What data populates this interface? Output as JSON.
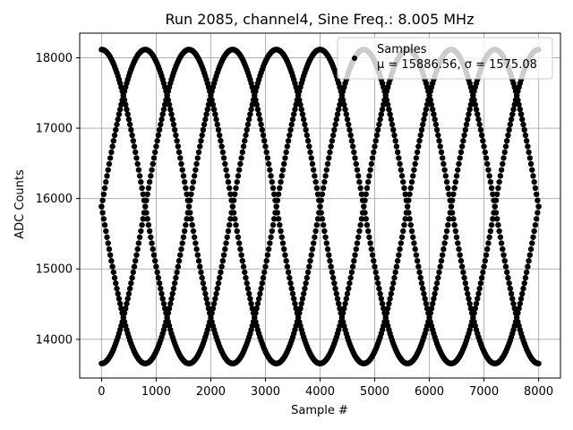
{
  "chart_data": {
    "type": "scatter",
    "title": "Run 2085, channel4, Sine Freq.: 8.005 MHz",
    "xlabel": "Sample #",
    "ylabel": "ADC Counts",
    "xlim": [
      -400,
      8400
    ],
    "ylim": [
      13450,
      18350
    ],
    "xticks": [
      0,
      1000,
      2000,
      3000,
      4000,
      5000,
      6000,
      7000,
      8000
    ],
    "yticks": [
      14000,
      15000,
      16000,
      17000,
      18000
    ],
    "grid": true,
    "legend": {
      "placement": "top-right",
      "label": "Samples",
      "stats": "μ = 15886.56, σ = 1575.08"
    },
    "series": [
      {
        "name": "Samples",
        "color": "#000000",
        "highlight_color": "#c8c8c8",
        "traces_description": "Sine sampled at 8.005 MHz aliased into interleaved sinusoids",
        "mean": 15886.56,
        "amplitude": 2230,
        "period_samples": 3200,
        "phases_deg": [
          90,
          0,
          -90,
          180
        ],
        "x_range": [
          0,
          8000
        ]
      }
    ]
  }
}
